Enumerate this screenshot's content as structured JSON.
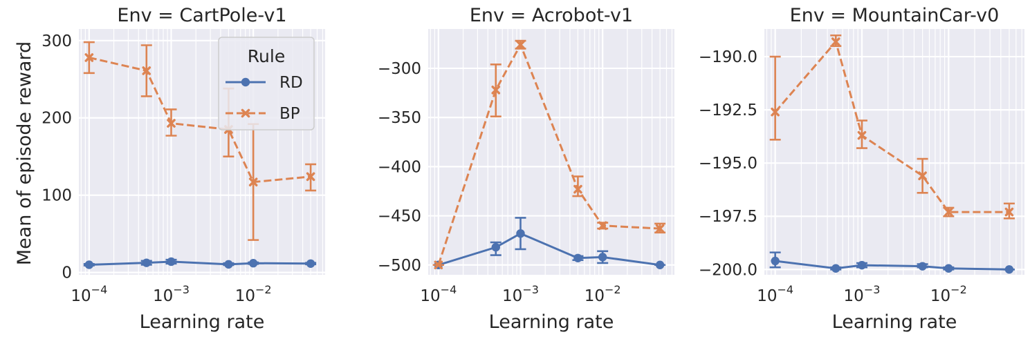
{
  "figure": {
    "ylabel": "Mean of episode reward",
    "xlabel": "Learning rate",
    "legend_title": "Rule"
  },
  "colors": {
    "RD": "#4c72b0",
    "BP": "#dd8452",
    "panel_bg": "#eaeaf2",
    "grid": "#ffffff"
  },
  "chart_data": [
    {
      "type": "line",
      "title": "Env = CartPole-v1",
      "xlabel": "Learning rate",
      "ylabel": "Mean of episode reward",
      "xscale": "log",
      "xlim": [
        7.5e-05,
        0.075
      ],
      "ylim": [
        -3,
        315
      ],
      "yticks": [
        0,
        100,
        200,
        300
      ],
      "ytick_labels": [
        "0",
        "100",
        "200",
        "300"
      ],
      "xticks": [
        0.0001,
        0.001,
        0.01
      ],
      "xtick_labels": [
        "10",
        "10",
        "10"
      ],
      "xtick_exponents": [
        "−4",
        "−3",
        "−2"
      ],
      "legend": "upper right",
      "grid": true,
      "x": [
        0.0001,
        0.0005,
        0.001,
        0.005,
        0.01,
        0.05
      ],
      "series": [
        {
          "name": "RD",
          "marker": "circle",
          "dashed": false,
          "values": [
            10,
            12.5,
            14,
            10.5,
            12,
            11.5
          ],
          "err_low": [
            9,
            10,
            11.5,
            9.5,
            11,
            10.5
          ],
          "err_high": [
            11,
            15,
            16.5,
            12,
            13,
            12.5
          ]
        },
        {
          "name": "BP",
          "marker": "x",
          "dashed": true,
          "values": [
            278,
            261,
            193,
            185,
            117,
            124
          ],
          "err_low": [
            258,
            228,
            177,
            150,
            42,
            106
          ],
          "err_high": [
            298,
            294,
            211,
            238,
            192,
            140
          ]
        }
      ]
    },
    {
      "type": "line",
      "title": "Env = Acrobot-v1",
      "xlabel": "Learning rate",
      "ylabel": "",
      "xscale": "log",
      "xlim": [
        7.5e-05,
        0.075
      ],
      "ylim": [
        -510,
        -260
      ],
      "yticks": [
        -300,
        -350,
        -400,
        -450,
        -500
      ],
      "ytick_labels": [
        "−300",
        "−350",
        "−400",
        "−450",
        "−500"
      ],
      "xticks": [
        0.0001,
        0.001,
        0.01
      ],
      "xtick_labels": [
        "10",
        "10",
        "10"
      ],
      "xtick_exponents": [
        "−4",
        "−3",
        "−2"
      ],
      "grid": true,
      "x": [
        0.0001,
        0.0005,
        0.001,
        0.005,
        0.01,
        0.05
      ],
      "series": [
        {
          "name": "RD",
          "marker": "circle",
          "dashed": false,
          "values": [
            -500,
            -482,
            -468,
            -493,
            -492,
            -500
          ],
          "err_low": [
            -500,
            -490,
            -484,
            -495,
            -498,
            -500
          ],
          "err_high": [
            -500,
            -477,
            -452,
            -491,
            -486,
            -500
          ]
        },
        {
          "name": "BP",
          "marker": "x",
          "dashed": true,
          "values": [
            -500,
            -322,
            -276,
            -423,
            -460,
            -463
          ],
          "err_low": [
            -500,
            -349,
            -280,
            -430,
            -463,
            -467
          ],
          "err_high": [
            -500,
            -296,
            -272,
            -410,
            -457,
            -458
          ]
        }
      ]
    },
    {
      "type": "line",
      "title": "Env = MountainCar-v0",
      "xlabel": "Learning rate",
      "ylabel": "",
      "xscale": "log",
      "xlim": [
        7.5e-05,
        0.075
      ],
      "ylim": [
        -200.25,
        -188.7
      ],
      "yticks": [
        -190.0,
        -192.5,
        -195.0,
        -197.5,
        -200.0
      ],
      "ytick_labels": [
        "−190.0",
        "−192.5",
        "−195.0",
        "−197.5",
        "−200.0"
      ],
      "xticks": [
        0.0001,
        0.001,
        0.01
      ],
      "xtick_labels": [
        "10",
        "10",
        "10"
      ],
      "xtick_exponents": [
        "−4",
        "−3",
        "−2"
      ],
      "grid": true,
      "x": [
        0.0001,
        0.0005,
        0.001,
        0.005,
        0.01,
        0.05
      ],
      "series": [
        {
          "name": "RD",
          "marker": "circle",
          "dashed": false,
          "values": [
            -199.6,
            -199.95,
            -199.8,
            -199.85,
            -199.95,
            -200.0
          ],
          "err_low": [
            -199.9,
            -200.0,
            -199.9,
            -199.9,
            -200.0,
            -200.0
          ],
          "err_high": [
            -199.2,
            -199.9,
            -199.7,
            -199.75,
            -199.9,
            -200.0
          ]
        },
        {
          "name": "BP",
          "marker": "x",
          "dashed": true,
          "values": [
            -192.6,
            -189.3,
            -193.7,
            -195.6,
            -197.3,
            -197.3
          ],
          "err_low": [
            -193.9,
            -189.5,
            -194.3,
            -196.4,
            -197.5,
            -197.6
          ],
          "err_high": [
            -190.0,
            -189.0,
            -193.0,
            -194.8,
            -197.1,
            -196.9
          ]
        }
      ]
    }
  ]
}
